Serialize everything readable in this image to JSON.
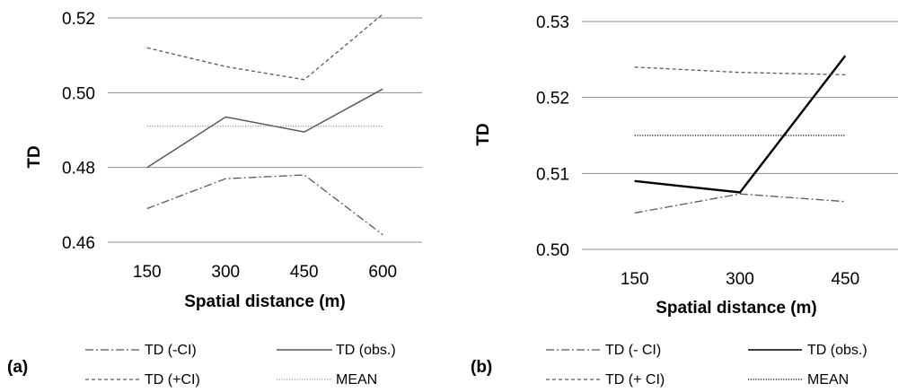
{
  "chart_data": [
    {
      "panel_label": "(a)",
      "type": "line",
      "categories": [
        "150",
        "300",
        "450",
        "600"
      ],
      "xlabel": "Spatial distance (m)",
      "ylabel": "TD",
      "ylim": [
        0.46,
        0.52
      ],
      "yticks": [
        "0.46",
        "0.48",
        "0.50",
        "0.52"
      ],
      "grid": true,
      "legend_position": "bottom",
      "series": [
        {
          "name": "TD (-CI)",
          "style": "dash-dot",
          "color": "#595959",
          "values": [
            0.469,
            0.477,
            0.478,
            0.462
          ]
        },
        {
          "name": "TD (obs.)",
          "style": "solid",
          "color": "#595959",
          "values": [
            0.48,
            0.4935,
            0.4895,
            0.501
          ]
        },
        {
          "name": "TD (+CI)",
          "style": "dashed",
          "color": "#595959",
          "values": [
            0.512,
            0.507,
            0.5035,
            0.521
          ]
        },
        {
          "name": "MEAN",
          "style": "dotted",
          "color": "#7f7f7f",
          "values": [
            0.491,
            0.491,
            0.491,
            0.491
          ]
        }
      ]
    },
    {
      "panel_label": "(b)",
      "type": "line",
      "categories": [
        "150",
        "300",
        "450"
      ],
      "xlabel": "Spatial distance (m)",
      "ylabel": "TD",
      "ylim": [
        0.5,
        0.53
      ],
      "yticks": [
        "0.50",
        "0.51",
        "0.52",
        "0.53"
      ],
      "grid": true,
      "legend_position": "bottom",
      "series": [
        {
          "name": "TD (- CI)",
          "style": "dash-dot",
          "color": "#595959",
          "values": [
            0.5048,
            0.5073,
            0.5063
          ]
        },
        {
          "name": "TD (obs.)",
          "style": "solid",
          "color": "#000000",
          "values": [
            0.509,
            0.5075,
            0.5255
          ]
        },
        {
          "name": "TD (+ CI)",
          "style": "dashed",
          "color": "#595959",
          "values": [
            0.524,
            0.5233,
            0.523
          ]
        },
        {
          "name": "MEAN",
          "style": "dotted",
          "color": "#000000",
          "values": [
            0.515,
            0.515,
            0.515
          ]
        }
      ]
    }
  ]
}
